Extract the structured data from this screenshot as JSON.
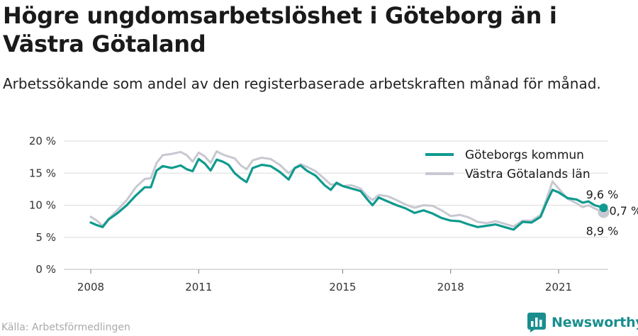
{
  "title": "Högre ungdomsarbetslöshet i Göteborg än i Västra Götaland",
  "subtitle": "Arbetssökande som andel av den registerbaserade arbetskraften månad för månad.",
  "source": "Källa: Arbetsförmedlingen",
  "brand": "Newsworthy",
  "colors": {
    "goteborg": "#0f9a8e",
    "vastra": "#c8c8d2",
    "grid": "#dcdcdc",
    "axis": "#555555"
  },
  "chart_data": {
    "type": "line",
    "x_ticks": [
      2008,
      2011,
      2015,
      2018,
      2021
    ],
    "y_ticks": [
      0,
      5,
      10,
      15,
      20
    ],
    "y_tick_labels": [
      "0 %",
      "5 %",
      "10 %",
      "15 %",
      "20 %"
    ],
    "xlim": [
      2008.0,
      2022.4
    ],
    "ylim": [
      0,
      20
    ],
    "grid": true,
    "legend_position": "top-right",
    "series": [
      {
        "name": "Göteborgs kommun",
        "color": "#0f9a8e",
        "points": [
          [
            2008.0,
            7.3
          ],
          [
            2008.17,
            6.9
          ],
          [
            2008.33,
            6.6
          ],
          [
            2008.5,
            7.8
          ],
          [
            2008.75,
            8.8
          ],
          [
            2009.0,
            10.0
          ],
          [
            2009.25,
            11.5
          ],
          [
            2009.5,
            12.8
          ],
          [
            2009.67,
            12.8
          ],
          [
            2009.83,
            15.4
          ],
          [
            2010.0,
            16.1
          ],
          [
            2010.25,
            15.8
          ],
          [
            2010.5,
            16.2
          ],
          [
            2010.67,
            15.6
          ],
          [
            2010.83,
            15.3
          ],
          [
            2011.0,
            17.2
          ],
          [
            2011.17,
            16.5
          ],
          [
            2011.33,
            15.4
          ],
          [
            2011.5,
            17.1
          ],
          [
            2011.67,
            16.8
          ],
          [
            2011.83,
            16.3
          ],
          [
            2012.0,
            15.0
          ],
          [
            2012.17,
            14.2
          ],
          [
            2012.33,
            13.6
          ],
          [
            2012.5,
            15.8
          ],
          [
            2012.75,
            16.3
          ],
          [
            2013.0,
            16.1
          ],
          [
            2013.25,
            15.2
          ],
          [
            2013.5,
            14.0
          ],
          [
            2013.67,
            15.8
          ],
          [
            2013.83,
            16.2
          ],
          [
            2014.0,
            15.4
          ],
          [
            2014.25,
            14.6
          ],
          [
            2014.5,
            13.1
          ],
          [
            2014.67,
            12.4
          ],
          [
            2014.83,
            13.5
          ],
          [
            2015.0,
            13.0
          ],
          [
            2015.25,
            12.6
          ],
          [
            2015.5,
            12.2
          ],
          [
            2015.67,
            11.0
          ],
          [
            2015.83,
            10.0
          ],
          [
            2016.0,
            11.2
          ],
          [
            2016.25,
            10.6
          ],
          [
            2016.5,
            10.0
          ],
          [
            2016.75,
            9.5
          ],
          [
            2017.0,
            8.8
          ],
          [
            2017.25,
            9.2
          ],
          [
            2017.5,
            8.7
          ],
          [
            2017.75,
            8.0
          ],
          [
            2018.0,
            7.6
          ],
          [
            2018.25,
            7.5
          ],
          [
            2018.5,
            7.0
          ],
          [
            2018.75,
            6.6
          ],
          [
            2019.0,
            6.8
          ],
          [
            2019.25,
            7.0
          ],
          [
            2019.5,
            6.6
          ],
          [
            2019.75,
            6.2
          ],
          [
            2020.0,
            7.4
          ],
          [
            2020.25,
            7.3
          ],
          [
            2020.5,
            8.2
          ],
          [
            2020.67,
            10.5
          ],
          [
            2020.83,
            12.4
          ],
          [
            2021.0,
            12.0
          ],
          [
            2021.25,
            11.1
          ],
          [
            2021.5,
            10.9
          ],
          [
            2021.67,
            10.4
          ],
          [
            2021.83,
            10.6
          ],
          [
            2022.0,
            10.0
          ],
          [
            2022.25,
            9.6
          ]
        ]
      },
      {
        "name": "Västra Götalands län",
        "color": "#c8c8d2",
        "points": [
          [
            2008.0,
            8.2
          ],
          [
            2008.17,
            7.6
          ],
          [
            2008.33,
            6.8
          ],
          [
            2008.5,
            7.9
          ],
          [
            2008.75,
            9.3
          ],
          [
            2009.0,
            10.8
          ],
          [
            2009.25,
            12.8
          ],
          [
            2009.5,
            14.1
          ],
          [
            2009.67,
            14.2
          ],
          [
            2009.83,
            16.6
          ],
          [
            2010.0,
            17.8
          ],
          [
            2010.25,
            18.0
          ],
          [
            2010.5,
            18.3
          ],
          [
            2010.67,
            17.8
          ],
          [
            2010.83,
            16.8
          ],
          [
            2011.0,
            18.2
          ],
          [
            2011.17,
            17.6
          ],
          [
            2011.33,
            16.6
          ],
          [
            2011.5,
            18.4
          ],
          [
            2011.67,
            17.9
          ],
          [
            2011.83,
            17.6
          ],
          [
            2012.0,
            17.3
          ],
          [
            2012.17,
            16.2
          ],
          [
            2012.33,
            15.6
          ],
          [
            2012.5,
            17.0
          ],
          [
            2012.75,
            17.4
          ],
          [
            2013.0,
            17.2
          ],
          [
            2013.25,
            16.3
          ],
          [
            2013.5,
            15.0
          ],
          [
            2013.67,
            15.8
          ],
          [
            2013.83,
            16.4
          ],
          [
            2014.0,
            16.0
          ],
          [
            2014.25,
            15.3
          ],
          [
            2014.5,
            14.1
          ],
          [
            2014.67,
            13.2
          ],
          [
            2014.83,
            13.3
          ],
          [
            2015.0,
            13.0
          ],
          [
            2015.25,
            13.1
          ],
          [
            2015.5,
            12.6
          ],
          [
            2015.67,
            11.5
          ],
          [
            2015.83,
            10.8
          ],
          [
            2016.0,
            11.6
          ],
          [
            2016.25,
            11.4
          ],
          [
            2016.5,
            10.8
          ],
          [
            2016.75,
            10.1
          ],
          [
            2017.0,
            9.6
          ],
          [
            2017.25,
            10.0
          ],
          [
            2017.5,
            9.9
          ],
          [
            2017.75,
            9.2
          ],
          [
            2018.0,
            8.3
          ],
          [
            2018.25,
            8.5
          ],
          [
            2018.5,
            8.1
          ],
          [
            2018.75,
            7.4
          ],
          [
            2019.0,
            7.2
          ],
          [
            2019.25,
            7.5
          ],
          [
            2019.5,
            7.1
          ],
          [
            2019.75,
            6.7
          ],
          [
            2020.0,
            7.6
          ],
          [
            2020.25,
            7.6
          ],
          [
            2020.5,
            8.5
          ],
          [
            2020.67,
            11.0
          ],
          [
            2020.83,
            13.7
          ],
          [
            2021.0,
            12.6
          ],
          [
            2021.25,
            11.0
          ],
          [
            2021.5,
            10.3
          ],
          [
            2021.67,
            9.7
          ],
          [
            2021.83,
            10.0
          ],
          [
            2022.0,
            9.5
          ],
          [
            2022.25,
            8.9
          ]
        ]
      }
    ],
    "annotations": [
      {
        "text": "9,6 %",
        "x": 2022.25,
        "y": 9.6,
        "anchor": "above"
      },
      {
        "text": "0,7 %",
        "x": 2022.25,
        "y": 9.3,
        "anchor": "right"
      },
      {
        "text": "8,9 %",
        "x": 2022.25,
        "y": 8.9,
        "anchor": "below"
      }
    ]
  }
}
